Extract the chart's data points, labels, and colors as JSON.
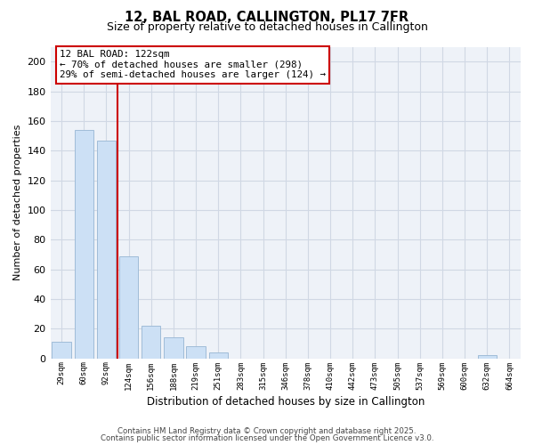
{
  "title": "12, BAL ROAD, CALLINGTON, PL17 7FR",
  "subtitle": "Size of property relative to detached houses in Callington",
  "xlabel": "Distribution of detached houses by size in Callington",
  "ylabel": "Number of detached properties",
  "bar_color": "#cce0f5",
  "bar_edge_color": "#a0bcd8",
  "categories": [
    "29sqm",
    "60sqm",
    "92sqm",
    "124sqm",
    "156sqm",
    "188sqm",
    "219sqm",
    "251sqm",
    "283sqm",
    "315sqm",
    "346sqm",
    "378sqm",
    "410sqm",
    "442sqm",
    "473sqm",
    "505sqm",
    "537sqm",
    "569sqm",
    "600sqm",
    "632sqm",
    "664sqm"
  ],
  "values": [
    11,
    154,
    147,
    69,
    22,
    14,
    8,
    4,
    0,
    0,
    0,
    0,
    0,
    0,
    0,
    0,
    0,
    0,
    0,
    2,
    0
  ],
  "ylim": [
    0,
    210
  ],
  "yticks": [
    0,
    20,
    40,
    60,
    80,
    100,
    120,
    140,
    160,
    180,
    200
  ],
  "vline_color": "#cc0000",
  "annotation_title": "12 BAL ROAD: 122sqm",
  "annotation_line1": "← 70% of detached houses are smaller (298)",
  "annotation_line2": "29% of semi-detached houses are larger (124) →",
  "annotation_box_color": "#ffffff",
  "annotation_box_edge": "#cc0000",
  "footer1": "Contains HM Land Registry data © Crown copyright and database right 2025.",
  "footer2": "Contains public sector information licensed under the Open Government Licence v3.0.",
  "bg_color": "#ffffff",
  "grid_color": "#d0d8e4"
}
